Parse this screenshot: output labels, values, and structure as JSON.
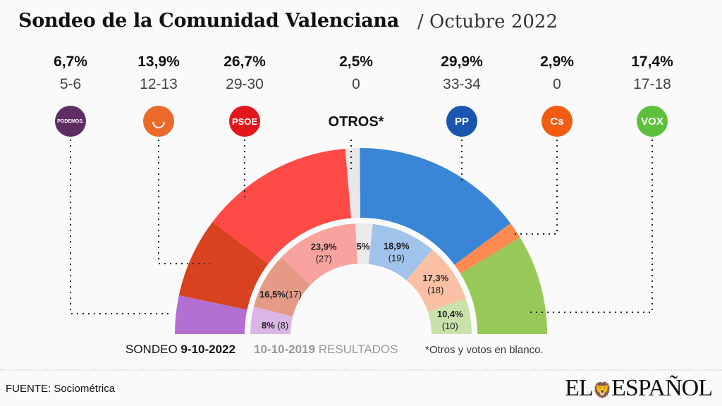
{
  "header": {
    "title": "Sondeo de la Comunidad Valenciana",
    "subtitle": "/ Octubre 2022"
  },
  "parties": [
    {
      "logo": "podemos-logo",
      "logo_text": "PODEMOS.",
      "pct": "6,7%",
      "seats": "5-6",
      "color": "#b36fd1",
      "color_2019": "#dab6e6",
      "logo_color": "#5e2d64"
    },
    {
      "logo": "compromis-logo",
      "logo_text": "",
      "pct": "13,9%",
      "seats": "12-13",
      "color": "#d9421f",
      "color_2019": "#e59a85",
      "logo_color": "#ea6a2a"
    },
    {
      "logo": "psoe-logo",
      "logo_text": "PSOE",
      "pct": "26,7%",
      "seats": "29-30",
      "color": "#ff4a45",
      "color_2019": "#f9a3a0",
      "logo_color": "#e3161c"
    },
    {
      "logo": "otros-label",
      "logo_text": "OTROS*",
      "pct": "2,5%",
      "seats": "0",
      "color": "#e8e8e8",
      "color_2019": "#ebebeb"
    },
    {
      "logo": "pp-logo",
      "logo_text": "PP",
      "pct": "29,9%",
      "seats": "33-34",
      "color": "#3a86d6",
      "color_2019": "#9fc3ea",
      "logo_color": "#1a56b0"
    },
    {
      "logo": "cs-logo",
      "logo_text": "Cs",
      "pct": "2,9%",
      "seats": "0",
      "color": "#ff8a4f",
      "color_2019": "#fbc0a4",
      "logo_color": "#f25c12"
    },
    {
      "logo": "vox-logo",
      "logo_text": "VOX",
      "pct": "17,4%",
      "seats": "17-18",
      "color": "#96c957",
      "color_2019": "#c8e2aa",
      "logo_color": "#5cc03c"
    }
  ],
  "chart_data": {
    "type": "pie",
    "shape": "half-donut (two concentric rings)",
    "categories": [
      "Podemos",
      "Compromís",
      "PSOE",
      "Otros",
      "PP",
      "Cs",
      "Vox"
    ],
    "series": [
      {
        "name": "SONDEO 9-10-2022",
        "values": [
          6.7,
          13.9,
          26.7,
          2.5,
          29.9,
          2.9,
          17.4
        ],
        "seats": [
          "5-6",
          "12-13",
          "29-30",
          "0",
          "33-34",
          "0",
          "17-18"
        ]
      },
      {
        "name": "10-10-2019 RESULTADOS",
        "values": [
          8,
          16.5,
          23.9,
          5,
          18.9,
          17.3,
          10.4
        ],
        "labels": [
          "8%",
          "16,5%",
          "23,9%",
          "5%",
          "18,9%",
          "17,3%",
          "10,4%"
        ],
        "seats": [
          "(8)",
          "(17)",
          "(27)",
          "",
          "(19)",
          "(18)",
          "(10)"
        ]
      }
    ]
  },
  "legend": {
    "poll_prefix": "SONDEO",
    "poll_date": "9-10-2022",
    "results_date": "10-10-2019",
    "results_suffix": "RESULTADOS",
    "note": "*Otros y votos en blanco."
  },
  "footer": {
    "source": "FUENTE: Sociométrica",
    "brand": "EL ESPAÑOL"
  }
}
